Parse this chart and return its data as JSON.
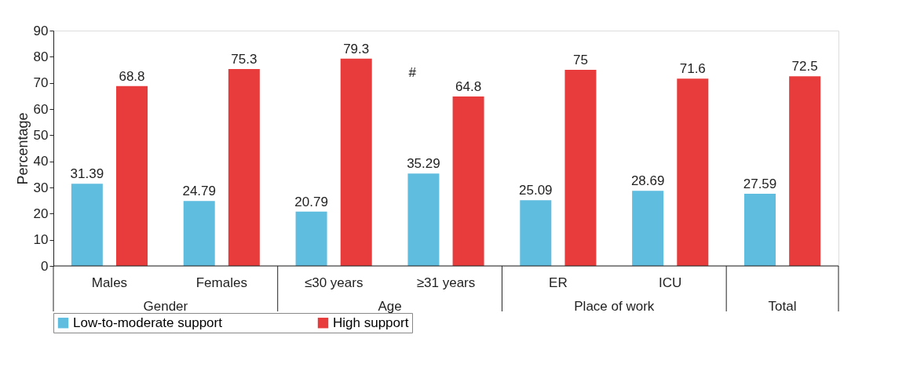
{
  "chart_data": {
    "type": "bar",
    "categories": [
      "Males",
      "Females",
      "≤30 years",
      "≥31 years",
      "ER",
      "ICU",
      null
    ],
    "series": [
      {
        "name": "Low-to-moderate support",
        "color": "#5fbde0",
        "values": [
          31.39,
          24.79,
          20.79,
          35.29,
          25.09,
          28.69,
          27.59
        ]
      },
      {
        "name": "High support",
        "color": "#e83c3c",
        "values": [
          68.8,
          75.3,
          79.3,
          64.8,
          75,
          71.6,
          72.5
        ]
      }
    ],
    "ylabel": "Percentage",
    "ylim": [
      0,
      90
    ],
    "yticks": [
      0,
      10,
      20,
      30,
      40,
      50,
      60,
      70,
      80,
      90
    ],
    "data_labels": true,
    "grid": false,
    "legend": "bottom",
    "annotations": [
      "Gender",
      "Age",
      "Place of work",
      "Total",
      "#"
    ]
  }
}
